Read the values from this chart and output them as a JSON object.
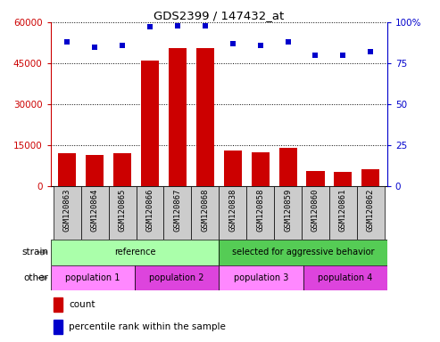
{
  "title": "GDS2399 / 147432_at",
  "samples": [
    "GSM120863",
    "GSM120864",
    "GSM120865",
    "GSM120866",
    "GSM120867",
    "GSM120868",
    "GSM120838",
    "GSM120858",
    "GSM120859",
    "GSM120860",
    "GSM120861",
    "GSM120862"
  ],
  "counts": [
    12000,
    11500,
    12200,
    46000,
    50500,
    50500,
    13200,
    12500,
    14200,
    5500,
    5200,
    6200
  ],
  "percentile_ranks": [
    88,
    85,
    86,
    97,
    98,
    98,
    87,
    86,
    88,
    80,
    80,
    82
  ],
  "ylim_left": [
    0,
    60000
  ],
  "ylim_right": [
    0,
    100
  ],
  "yticks_left": [
    0,
    15000,
    30000,
    45000,
    60000
  ],
  "yticks_right": [
    0,
    25,
    50,
    75,
    100
  ],
  "bar_color": "#cc0000",
  "dot_color": "#0000cc",
  "strain_groups": [
    {
      "label": "reference",
      "start": 0,
      "end": 6,
      "color": "#aaffaa"
    },
    {
      "label": "selected for aggressive behavior",
      "start": 6,
      "end": 12,
      "color": "#55cc55"
    }
  ],
  "other_groups": [
    {
      "label": "population 1",
      "start": 0,
      "end": 3,
      "color": "#ff88ff"
    },
    {
      "label": "population 2",
      "start": 3,
      "end": 6,
      "color": "#dd44dd"
    },
    {
      "label": "population 3",
      "start": 6,
      "end": 9,
      "color": "#ff88ff"
    },
    {
      "label": "population 4",
      "start": 9,
      "end": 12,
      "color": "#dd44dd"
    }
  ],
  "strain_label": "strain",
  "other_label": "other",
  "legend_count_label": "count",
  "legend_pct_label": "percentile rank within the sample",
  "bg_color": "#ffffff",
  "tick_bg_color": "#cccccc",
  "left_axis_color": "#cc0000",
  "right_axis_color": "#0000cc"
}
